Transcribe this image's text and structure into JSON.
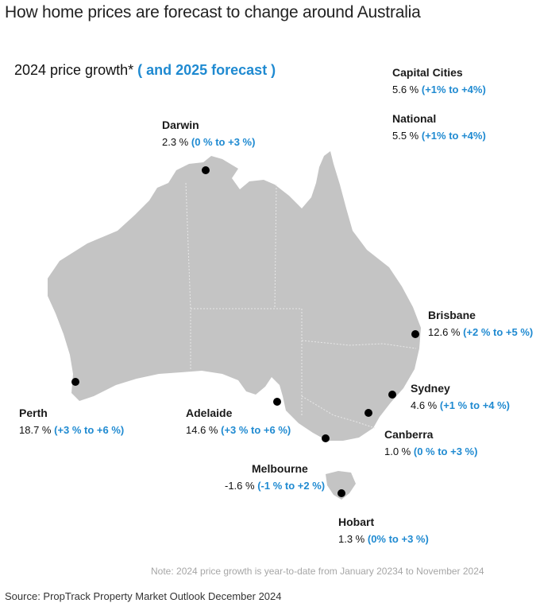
{
  "title": "How home prices are forecast to change around Australia",
  "subtitle": {
    "main": "2024 price growth*",
    "forecast": "( and 2025 forecast )"
  },
  "colors": {
    "land": "#c4c4c4",
    "forecast": "#1f8ad1",
    "city_dot": "#000000",
    "border": "#e8e8e8"
  },
  "summary": {
    "capital": {
      "name": "Capital Cities",
      "growth": "5.6 %",
      "forecast": "(+1% to +4%)"
    },
    "national": {
      "name": "National",
      "growth": "5.5 %",
      "forecast": "(+1% to +4%)"
    }
  },
  "cities": {
    "darwin": {
      "name": "Darwin",
      "growth": "2.3 %",
      "forecast": "(0 % to +3 %)"
    },
    "brisbane": {
      "name": "Brisbane",
      "growth": "12.6 %",
      "forecast": "(+2 % to +5 %)"
    },
    "sydney": {
      "name": "Sydney",
      "growth": "4.6 %",
      "forecast": "(+1 % to +4 %)"
    },
    "canberra": {
      "name": "Canberra",
      "growth": "1.0 %",
      "forecast": "(0 % to +3 %)"
    },
    "melbourne": {
      "name": "Melbourne",
      "growth": "-1.6 %",
      "forecast": "(-1 % to +2 %)"
    },
    "hobart": {
      "name": "Hobart",
      "growth": "1.3 %",
      "forecast": "(0% to +3 %)"
    },
    "adelaide": {
      "name": "Adelaide",
      "growth": "14.6 %",
      "forecast": "(+3 % to +6 %)"
    },
    "perth": {
      "name": "Perth",
      "growth": "18.7 %",
      "forecast": "(+3 % to +6 %)"
    }
  },
  "note": "Note: 2024 price growth is year-to-date from January 20234 to November 2024",
  "source": "Source: PropTrack Property Market Outlook December 2024"
}
